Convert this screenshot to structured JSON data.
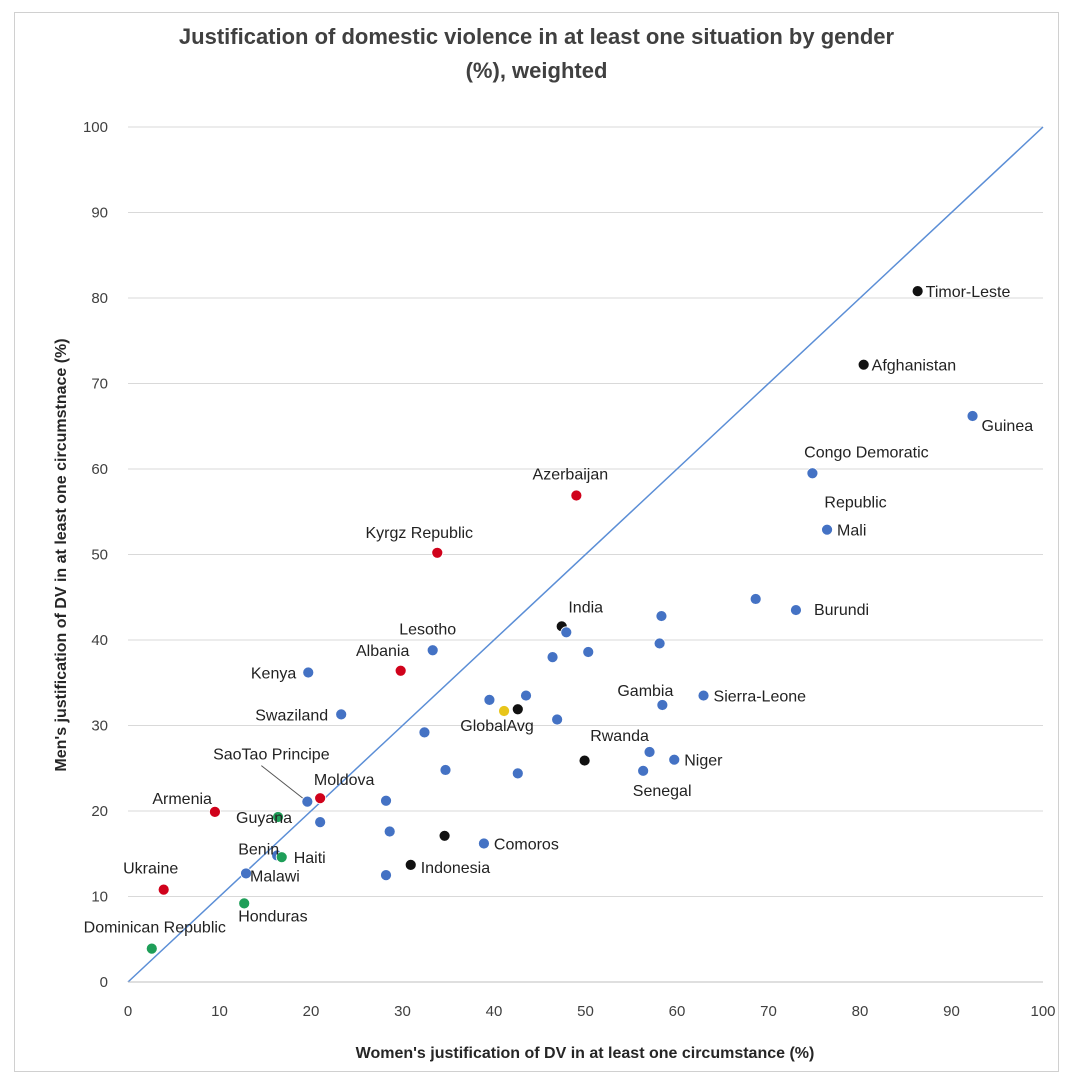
{
  "chart_data": {
    "type": "scatter",
    "title_lines": [
      "Justification of domestic violence in at least one situation by gender",
      "(%), weighted"
    ],
    "xlabel": "Women's justification  of DV in at least one circumstance  (%)",
    "ylabel": "Men's justification  of DV in at least one circumstnace  (%)",
    "xlim": [
      0,
      100
    ],
    "ylim": [
      0,
      100
    ],
    "x_ticks": [
      "0",
      "10",
      "20",
      "30",
      "40",
      "50",
      "60",
      "70",
      "80",
      "90",
      "100"
    ],
    "y_ticks": [
      "0",
      "10",
      "20",
      "30",
      "40",
      "50",
      "60",
      "70",
      "80",
      "90",
      "100"
    ],
    "grid": true,
    "reference_line": {
      "from": [
        0,
        0
      ],
      "to": [
        100,
        100
      ],
      "color": "#5b8ed6"
    },
    "colors": {
      "blue": "#4472c4",
      "red": "#d0021b",
      "green": "#1e9e58",
      "black": "#111111",
      "yellow": "#e8c51a"
    },
    "points": [
      {
        "x": 86.3,
        "y": 80.8,
        "color": "black",
        "label": "Timor-Leste"
      },
      {
        "x": 80.4,
        "y": 72.2,
        "color": "black",
        "label": "Afghanistan"
      },
      {
        "x": 92.3,
        "y": 66.2,
        "color": "blue",
        "label": "Guinea"
      },
      {
        "x": 74.8,
        "y": 59.5,
        "color": "blue",
        "label": "Congo Demoratic"
      },
      {
        "x": 76.4,
        "y": 52.9,
        "color": "blue",
        "label": "Mali"
      },
      {
        "x": 49.0,
        "y": 56.9,
        "color": "red",
        "label": "Azerbaijan"
      },
      {
        "x": 33.8,
        "y": 50.2,
        "color": "red",
        "label": "Kyrgz Republic"
      },
      {
        "x": 68.6,
        "y": 44.8,
        "color": "blue",
        "label": ""
      },
      {
        "x": 73.0,
        "y": 43.5,
        "color": "blue",
        "label": "Burundi"
      },
      {
        "x": 58.3,
        "y": 42.8,
        "color": "blue",
        "label": ""
      },
      {
        "x": 47.4,
        "y": 41.6,
        "color": "black",
        "label": "India"
      },
      {
        "x": 47.9,
        "y": 40.9,
        "color": "blue",
        "label": ""
      },
      {
        "x": 58.1,
        "y": 39.6,
        "color": "blue",
        "label": ""
      },
      {
        "x": 50.3,
        "y": 38.6,
        "color": "blue",
        "label": ""
      },
      {
        "x": 33.3,
        "y": 38.8,
        "color": "blue",
        "label": "Lesotho"
      },
      {
        "x": 46.4,
        "y": 38.0,
        "color": "blue",
        "label": ""
      },
      {
        "x": 19.7,
        "y": 36.2,
        "color": "blue",
        "label": "Kenya"
      },
      {
        "x": 29.8,
        "y": 36.4,
        "color": "red",
        "label": "Albania"
      },
      {
        "x": 43.5,
        "y": 33.5,
        "color": "blue",
        "label": ""
      },
      {
        "x": 62.9,
        "y": 33.5,
        "color": "blue",
        "label": "Sierra-Leone"
      },
      {
        "x": 39.5,
        "y": 33.0,
        "color": "blue",
        "label": ""
      },
      {
        "x": 58.4,
        "y": 32.4,
        "color": "blue",
        "label": "Gambia"
      },
      {
        "x": 42.6,
        "y": 31.9,
        "color": "black",
        "label": ""
      },
      {
        "x": 41.1,
        "y": 31.7,
        "color": "yellow",
        "label": "GlobalAvg"
      },
      {
        "x": 23.3,
        "y": 31.3,
        "color": "blue",
        "label": "Swaziland"
      },
      {
        "x": 46.9,
        "y": 30.7,
        "color": "blue",
        "label": ""
      },
      {
        "x": 32.4,
        "y": 29.2,
        "color": "blue",
        "label": ""
      },
      {
        "x": 57.0,
        "y": 26.9,
        "color": "blue",
        "label": "Rwanda"
      },
      {
        "x": 49.9,
        "y": 25.9,
        "color": "black",
        "label": ""
      },
      {
        "x": 59.7,
        "y": 26.0,
        "color": "blue",
        "label": "Niger"
      },
      {
        "x": 34.7,
        "y": 24.8,
        "color": "blue",
        "label": ""
      },
      {
        "x": 42.6,
        "y": 24.4,
        "color": "blue",
        "label": ""
      },
      {
        "x": 56.3,
        "y": 24.7,
        "color": "blue",
        "label": "Senegal"
      },
      {
        "x": 19.6,
        "y": 21.1,
        "color": "blue",
        "label": ""
      },
      {
        "x": 21.0,
        "y": 21.5,
        "color": "red",
        "label": "Moldova"
      },
      {
        "x": 28.2,
        "y": 21.2,
        "color": "blue",
        "label": ""
      },
      {
        "x": 9.5,
        "y": 19.9,
        "color": "red",
        "label": "Armenia"
      },
      {
        "x": 16.4,
        "y": 19.3,
        "color": "green",
        "label": "Guyana"
      },
      {
        "x": 21.0,
        "y": 18.7,
        "color": "blue",
        "label": ""
      },
      {
        "x": 28.6,
        "y": 17.6,
        "color": "blue",
        "label": ""
      },
      {
        "x": 34.6,
        "y": 17.1,
        "color": "black",
        "label": ""
      },
      {
        "x": 38.9,
        "y": 16.2,
        "color": "blue",
        "label": "Comoros"
      },
      {
        "x": 16.3,
        "y": 14.8,
        "color": "blue",
        "label": "Benin"
      },
      {
        "x": 16.8,
        "y": 14.6,
        "color": "green",
        "label": "Haiti"
      },
      {
        "x": 30.9,
        "y": 13.7,
        "color": "black",
        "label": "Indonesia"
      },
      {
        "x": 12.9,
        "y": 12.7,
        "color": "blue",
        "label": "Malawi"
      },
      {
        "x": 28.2,
        "y": 12.5,
        "color": "blue",
        "label": ""
      },
      {
        "x": 3.9,
        "y": 10.8,
        "color": "red",
        "label": "Ukraine"
      },
      {
        "x": 12.7,
        "y": 9.2,
        "color": "green",
        "label": "Honduras"
      },
      {
        "x": 2.6,
        "y": 3.9,
        "color": "green",
        "label": "Dominican Republic"
      }
    ],
    "extra_labels": [
      {
        "text": "Republic",
        "for": "Congo Demoratic"
      },
      {
        "text": "SaoTao Principe",
        "for": "SaoTao Principe"
      }
    ]
  }
}
